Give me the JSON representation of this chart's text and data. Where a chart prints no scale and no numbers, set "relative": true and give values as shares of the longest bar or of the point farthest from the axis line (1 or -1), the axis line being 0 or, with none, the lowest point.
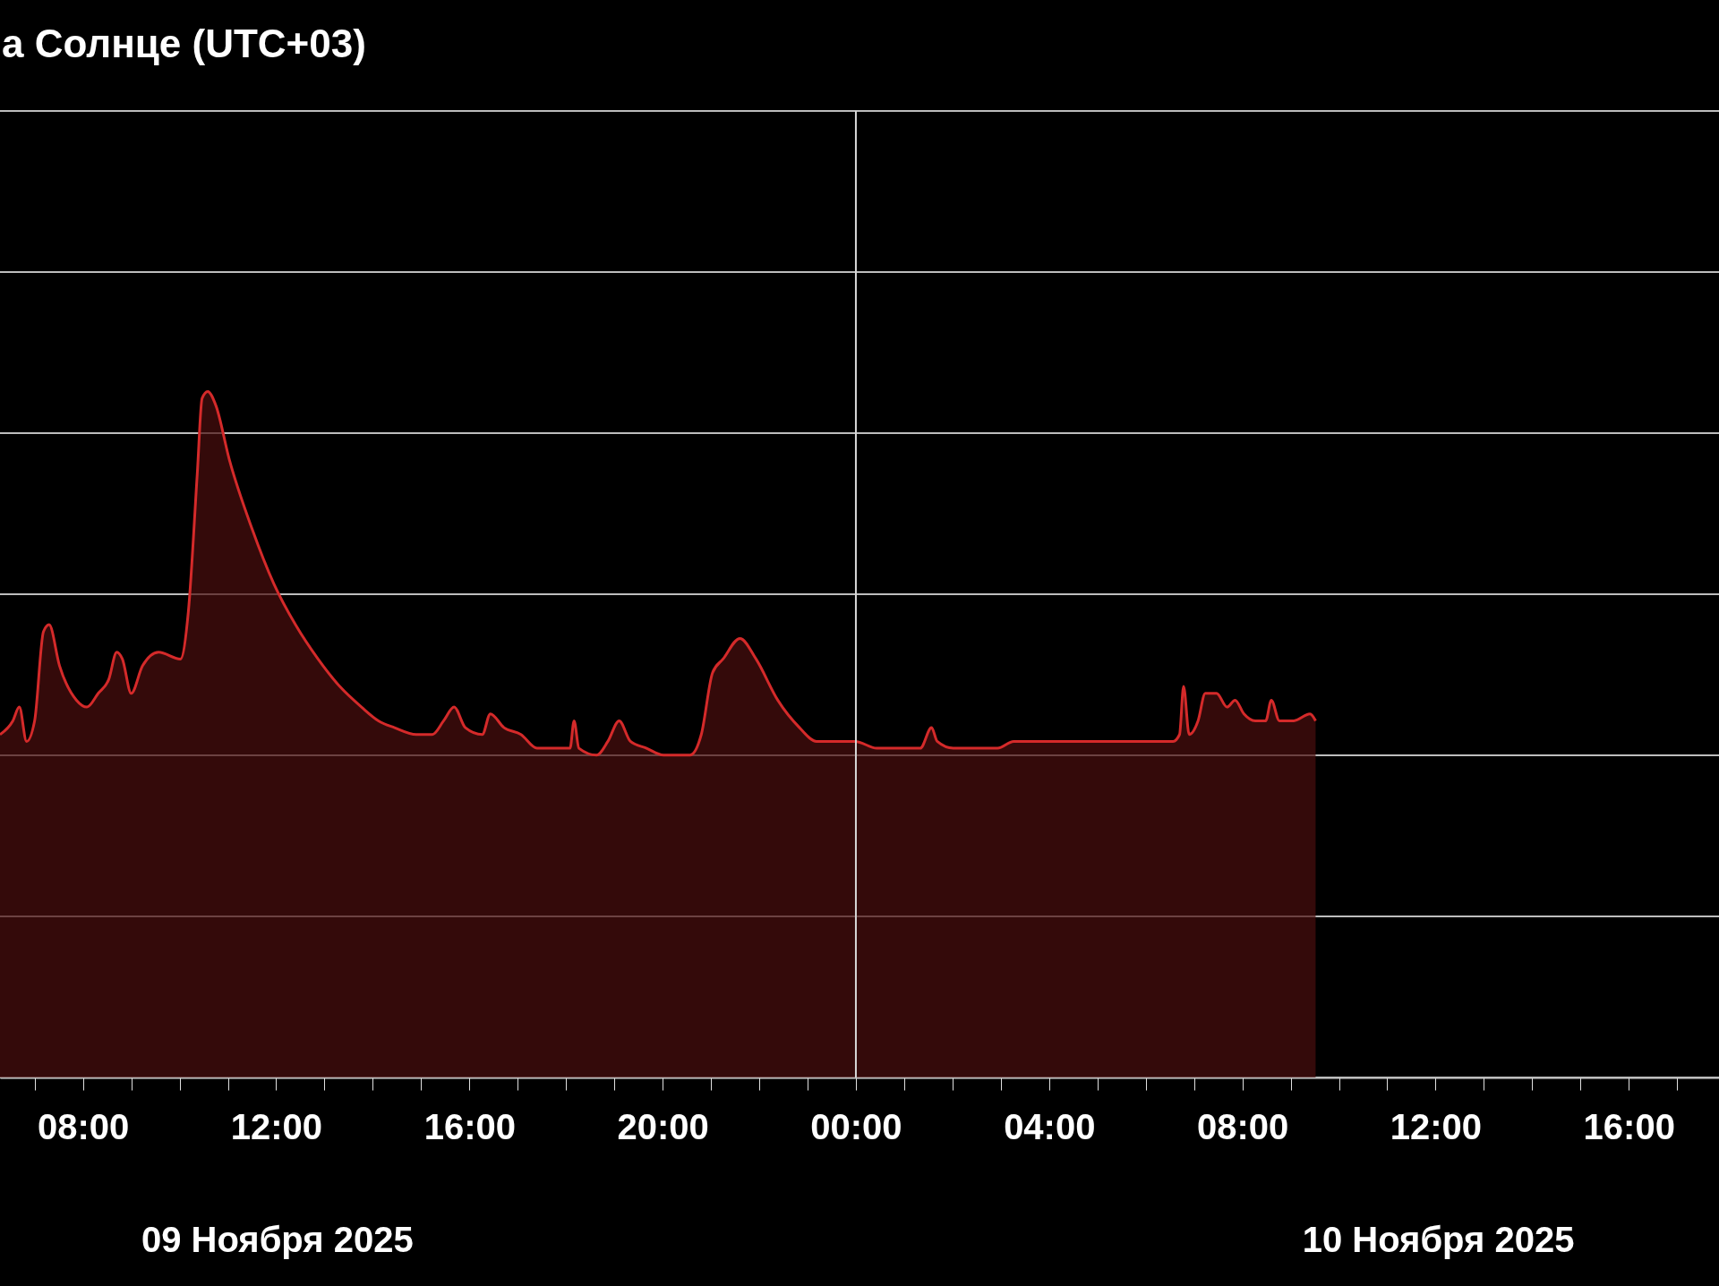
{
  "chart_data": {
    "type": "area",
    "title": "а Солнце (UTC+03)",
    "relative": true,
    "grid": "y",
    "xlim": [
      "2025-11-09T06:17",
      "2025-11-10T17:52"
    ],
    "xticks": [
      {
        "value": "2025-11-09T07:00",
        "label": null
      },
      {
        "value": "2025-11-09T08:00",
        "label": "08:00"
      },
      {
        "value": "2025-11-09T09:00",
        "label": null
      },
      {
        "value": "2025-11-09T10:00",
        "label": null
      },
      {
        "value": "2025-11-09T11:00",
        "label": null
      },
      {
        "value": "2025-11-09T12:00",
        "label": "12:00"
      },
      {
        "value": "2025-11-09T13:00",
        "label": null
      },
      {
        "value": "2025-11-09T14:00",
        "label": null
      },
      {
        "value": "2025-11-09T15:00",
        "label": null
      },
      {
        "value": "2025-11-09T16:00",
        "label": "16:00"
      },
      {
        "value": "2025-11-09T17:00",
        "label": null
      },
      {
        "value": "2025-11-09T18:00",
        "label": null
      },
      {
        "value": "2025-11-09T19:00",
        "label": null
      },
      {
        "value": "2025-11-09T20:00",
        "label": "20:00"
      },
      {
        "value": "2025-11-09T21:00",
        "label": null
      },
      {
        "value": "2025-11-09T22:00",
        "label": null
      },
      {
        "value": "2025-11-09T23:00",
        "label": null
      },
      {
        "value": "2025-11-10T00:00",
        "label": "00:00"
      },
      {
        "value": "2025-11-10T01:00",
        "label": null
      },
      {
        "value": "2025-11-10T02:00",
        "label": null
      },
      {
        "value": "2025-11-10T03:00",
        "label": null
      },
      {
        "value": "2025-11-10T04:00",
        "label": "04:00"
      },
      {
        "value": "2025-11-10T05:00",
        "label": null
      },
      {
        "value": "2025-11-10T06:00",
        "label": null
      },
      {
        "value": "2025-11-10T07:00",
        "label": null
      },
      {
        "value": "2025-11-10T08:00",
        "label": "08:00"
      },
      {
        "value": "2025-11-10T09:00",
        "label": null
      },
      {
        "value": "2025-11-10T10:00",
        "label": null
      },
      {
        "value": "2025-11-10T11:00",
        "label": null
      },
      {
        "value": "2025-11-10T12:00",
        "label": "12:00"
      },
      {
        "value": "2025-11-10T13:00",
        "label": null
      },
      {
        "value": "2025-11-10T14:00",
        "label": null
      },
      {
        "value": "2025-11-10T15:00",
        "label": null
      },
      {
        "value": "2025-11-10T16:00",
        "label": "16:00"
      },
      {
        "value": "2025-11-10T17:00",
        "label": null
      }
    ],
    "ref_lines": [
      {
        "axis": "x",
        "value": "2025-11-10T00:00",
        "color": "#d8d8d8"
      }
    ],
    "annotations": [
      "09 Ноября 2025",
      "10 Ноября 2025"
    ],
    "series": [
      {
        "color": "#d42a2a",
        "x": [
          "2025-11-09T06:17",
          "2025-11-09T06:33",
          "2025-11-09T06:41",
          "2025-11-09T06:50",
          "2025-11-09T07:00",
          "2025-11-09T07:11",
          "2025-11-09T07:18",
          "2025-11-09T07:31",
          "2025-11-09T07:52",
          "2025-11-09T08:05",
          "2025-11-09T08:19",
          "2025-11-09T08:32",
          "2025-11-09T08:42",
          "2025-11-09T08:49",
          "2025-11-09T09:00",
          "2025-11-09T09:14",
          "2025-11-09T09:34",
          "2025-11-09T10:01",
          "2025-11-09T10:11",
          "2025-11-09T10:22",
          "2025-11-09T10:28",
          "2025-11-09T10:35",
          "2025-11-09T10:45",
          "2025-11-09T11:02",
          "2025-11-09T11:30",
          "2025-11-09T11:57",
          "2025-11-09T12:24",
          "2025-11-09T12:52",
          "2025-11-09T13:19",
          "2025-11-09T13:46",
          "2025-11-09T14:07",
          "2025-11-09T14:27",
          "2025-11-09T14:54",
          "2025-11-09T15:14",
          "2025-11-09T15:28",
          "2025-11-09T15:41",
          "2025-11-09T15:55",
          "2025-11-09T16:16",
          "2025-11-09T16:26",
          "2025-11-09T16:43",
          "2025-11-09T17:04",
          "2025-11-09T17:24",
          "2025-11-09T17:51",
          "2025-11-09T18:05",
          "2025-11-09T18:10",
          "2025-11-09T18:16",
          "2025-11-09T18:38",
          "2025-11-09T18:52",
          "2025-11-09T19:06",
          "2025-11-09T19:20",
          "2025-11-09T19:40",
          "2025-11-09T20:01",
          "2025-11-09T20:34",
          "2025-11-09T20:48",
          "2025-11-09T21:02",
          "2025-11-09T21:15",
          "2025-11-09T21:36",
          "2025-11-09T21:56",
          "2025-11-09T22:23",
          "2025-11-09T22:50",
          "2025-11-09T23:11",
          "2025-11-09T23:31",
          "2025-11-09T23:59",
          "2025-11-10T00:26",
          "2025-11-10T00:46",
          "2025-11-10T00:53",
          "2025-11-10T01:20",
          "2025-11-10T01:34",
          "2025-11-10T01:41",
          "2025-11-10T02:01",
          "2025-11-10T02:28",
          "2025-11-10T02:56",
          "2025-11-10T03:16",
          "2025-11-10T03:50",
          "2025-11-10T04:31",
          "2025-11-10T05:12",
          "2025-11-10T05:53",
          "2025-11-10T06:34",
          "2025-11-10T06:42",
          "2025-11-10T06:47",
          "2025-11-10T06:54",
          "2025-11-10T07:05",
          "2025-11-10T07:14",
          "2025-11-10T07:28",
          "2025-11-10T07:41",
          "2025-11-10T07:51",
          "2025-11-10T08:02",
          "2025-11-10T08:16",
          "2025-11-10T08:29",
          "2025-11-10T08:36",
          "2025-11-10T08:46",
          "2025-11-10T09:04",
          "2025-11-10T09:24",
          "2025-11-10T09:31"
        ],
        "values": [
          0.5,
          0.52,
          0.54,
          0.49,
          0.52,
          0.65,
          0.66,
          0.6,
          0.55,
          0.54,
          0.56,
          0.58,
          0.62,
          0.61,
          0.56,
          0.6,
          0.62,
          0.61,
          0.68,
          0.88,
          0.99,
          1,
          0.98,
          0.9,
          0.8,
          0.72,
          0.66,
          0.61,
          0.57,
          0.54,
          0.52,
          0.51,
          0.5,
          0.5,
          0.52,
          0.54,
          0.51,
          0.5,
          0.53,
          0.51,
          0.5,
          0.48,
          0.48,
          0.48,
          0.52,
          0.48,
          0.47,
          0.49,
          0.52,
          0.49,
          0.48,
          0.47,
          0.47,
          0.5,
          0.59,
          0.61,
          0.64,
          0.61,
          0.55,
          0.51,
          0.49,
          0.49,
          0.49,
          0.48,
          0.48,
          0.48,
          0.48,
          0.51,
          0.49,
          0.48,
          0.48,
          0.48,
          0.49,
          0.49,
          0.49,
          0.49,
          0.49,
          0.49,
          0.5,
          0.57,
          0.5,
          0.52,
          0.56,
          0.56,
          0.54,
          0.55,
          0.53,
          0.52,
          0.52,
          0.55,
          0.52,
          0.52,
          0.53,
          0.52
        ]
      }
    ]
  }
}
